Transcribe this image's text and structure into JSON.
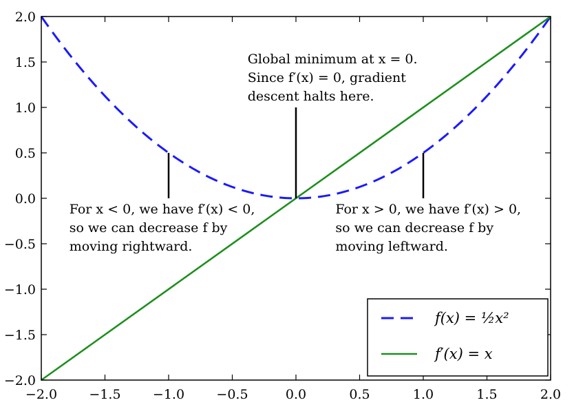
{
  "chart_data": {
    "type": "line",
    "xlim": [
      -2.0,
      2.0
    ],
    "ylim": [
      -2.0,
      2.0
    ],
    "xticks": [
      -2.0,
      -1.5,
      -1.0,
      -0.5,
      0.0,
      0.5,
      1.0,
      1.5,
      2.0
    ],
    "yticks": [
      -2.0,
      -1.5,
      -1.0,
      -0.5,
      0.0,
      0.5,
      1.0,
      1.5,
      2.0
    ],
    "xtick_labels": [
      "−2.0",
      "−1.5",
      "−1.0",
      "−0.5",
      "0.0",
      "0.5",
      "1.0",
      "1.5",
      "2.0"
    ],
    "ytick_labels": [
      "−2.0",
      "−1.5",
      "−1.0",
      "−0.5",
      "0.0",
      "0.5",
      "1.0",
      "1.5",
      "2.0"
    ],
    "grid": false,
    "legend_position": "lower-right",
    "series": [
      {
        "name": "f(x) = ½x²",
        "style": "dashed",
        "color": "#1a1aff",
        "x": [
          -2.0,
          -1.75,
          -1.5,
          -1.25,
          -1.0,
          -0.75,
          -0.5,
          -0.25,
          0.0,
          0.25,
          0.5,
          0.75,
          1.0,
          1.25,
          1.5,
          1.75,
          2.0
        ],
        "y": [
          2.0,
          1.53125,
          1.125,
          0.78125,
          0.5,
          0.28125,
          0.125,
          0.03125,
          0.0,
          0.03125,
          0.125,
          0.28125,
          0.5,
          0.78125,
          1.125,
          1.53125,
          2.0
        ]
      },
      {
        "name": "f′(x) = x",
        "style": "solid",
        "color": "#1f8f1f",
        "x": [
          -2.0,
          2.0
        ],
        "y": [
          -2.0,
          2.0
        ]
      }
    ],
    "annotations": [
      {
        "lines": [
          "Global minimum at x = 0.",
          "Since f′(x) = 0, gradient",
          "descent halts here."
        ],
        "arrow_to": [
          0.0,
          0.0
        ],
        "arrow_from": [
          0.0,
          1.0
        ],
        "text_at": [
          -0.38,
          1.5
        ]
      },
      {
        "lines": [
          "For x < 0, we have f′(x) < 0,",
          "so we can decrease f by",
          "moving rightward."
        ],
        "arrow_to": [
          -1.0,
          0.5
        ],
        "arrow_from": [
          -1.0,
          0.0
        ],
        "text_at": [
          -1.78,
          -0.15
        ]
      },
      {
        "lines": [
          "For x > 0, we have f′(x) > 0,",
          "so we can decrease f by",
          "moving leftward."
        ],
        "arrow_to": [
          1.0,
          0.5
        ],
        "arrow_from": [
          1.0,
          0.0
        ],
        "text_at": [
          0.31,
          -0.15
        ]
      }
    ]
  }
}
